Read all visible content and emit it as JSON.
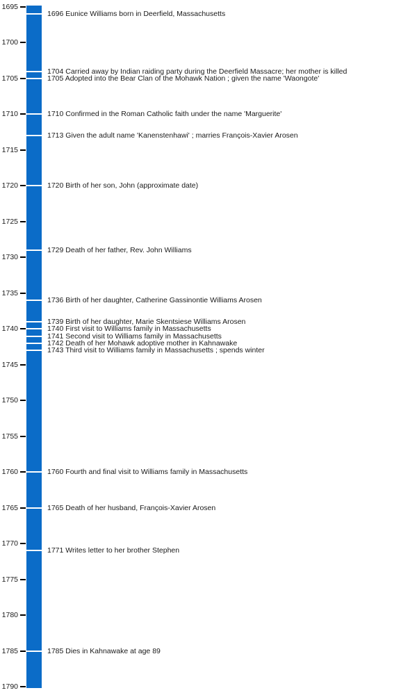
{
  "chart_data": {
    "type": "timeline",
    "orientation": "vertical",
    "axis": {
      "side": "left",
      "start": 1695,
      "end": 1790,
      "step": 5,
      "tick_labels": [
        "1695",
        "1700",
        "1705",
        "1710",
        "1715",
        "1720",
        "1725",
        "1730",
        "1735",
        "1740",
        "1745",
        "1750",
        "1755",
        "1760",
        "1765",
        "1770",
        "1775",
        "1780",
        "1785",
        "1790"
      ]
    },
    "events": [
      {
        "year": 1696,
        "label": "1696 Eunice Williams born in Deerfield, Massachusetts"
      },
      {
        "year": 1704,
        "label": "1704 Carried away by Indian raiding party during the Deerfield Massacre; her mother is killed"
      },
      {
        "year": 1705,
        "label": "1705 Adopted into the Bear Clan of the Mohawk Nation ; given the name 'Waongote'"
      },
      {
        "year": 1710,
        "label": "1710 Confirmed in the Roman Catholic faith under the name 'Marguerite'"
      },
      {
        "year": 1713,
        "label": "1713 Given the adult name 'Kanenstenhawi' ; marries François-Xavier Arosen"
      },
      {
        "year": 1720,
        "label": "1720 Birth of her son, John (approximate date)"
      },
      {
        "year": 1729,
        "label": "1729 Death of her father, Rev. John Williams"
      },
      {
        "year": 1736,
        "label": "1736 Birth of her daughter, Catherine Gassinontie Williams Arosen"
      },
      {
        "year": 1739,
        "label": "1739 Birth of her daughter, Marie Skentsiese Williams Arosen"
      },
      {
        "year": 1740,
        "label": "1740 First visit to Williams family in Massachusetts"
      },
      {
        "year": 1741,
        "label": "1741 Second visit to Williams family in Massachusetts"
      },
      {
        "year": 1742,
        "label": "1742 Death of her Mohawk adoptive mother in Kahnawake"
      },
      {
        "year": 1743,
        "label": "1743 Third visit to Williams family in Massachusetts ; spends winter"
      },
      {
        "year": 1760,
        "label": "1760 Fourth and final visit to Williams family in Massachusetts"
      },
      {
        "year": 1765,
        "label": "1765 Death of her husband, François-Xavier Arosen"
      },
      {
        "year": 1771,
        "label": "1771 Writes letter to her brother Stephen"
      },
      {
        "year": 1785,
        "label": "1785 Dies in Kahnawake at age 89"
      }
    ],
    "colors": {
      "bar": "#0b6cc8",
      "event_tick": "#ffffff",
      "axis_tick": "#000000",
      "text": "#1a1a1a"
    },
    "layout_hints": {
      "grid": false,
      "legend": false,
      "event_labels_right_of_bar": true
    }
  }
}
